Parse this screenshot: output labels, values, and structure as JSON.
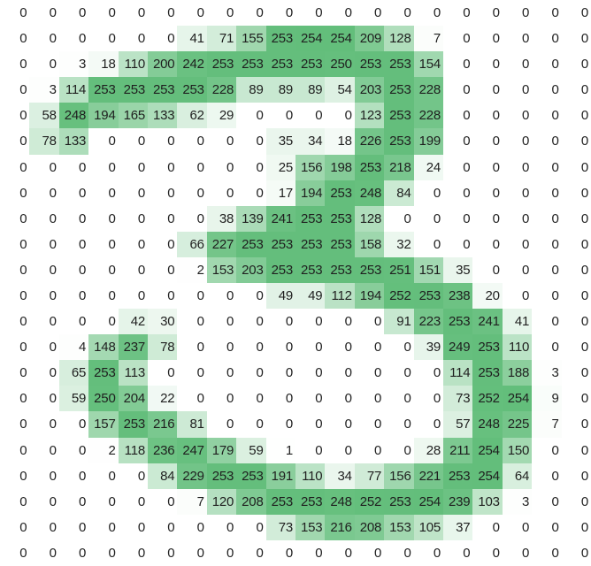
{
  "chart_data": {
    "type": "heatmap",
    "rows": 22,
    "cols": 20,
    "values": [
      [
        0,
        0,
        0,
        0,
        0,
        0,
        0,
        0,
        0,
        0,
        0,
        0,
        0,
        0,
        0,
        0,
        0,
        0,
        0,
        0
      ],
      [
        0,
        0,
        0,
        0,
        0,
        0,
        41,
        71,
        155,
        253,
        254,
        254,
        209,
        128,
        7,
        0,
        0,
        0,
        0,
        0
      ],
      [
        0,
        0,
        3,
        18,
        110,
        200,
        242,
        253,
        253,
        253,
        253,
        250,
        253,
        253,
        154,
        0,
        0,
        0,
        0,
        0
      ],
      [
        0,
        3,
        114,
        253,
        253,
        253,
        253,
        228,
        89,
        89,
        89,
        54,
        203,
        253,
        228,
        0,
        0,
        0,
        0,
        0
      ],
      [
        0,
        58,
        248,
        194,
        165,
        133,
        62,
        29,
        0,
        0,
        0,
        0,
        123,
        253,
        228,
        0,
        0,
        0,
        0,
        0
      ],
      [
        0,
        78,
        133,
        0,
        0,
        0,
        0,
        0,
        0,
        35,
        34,
        18,
        226,
        253,
        199,
        0,
        0,
        0,
        0,
        0
      ],
      [
        0,
        0,
        0,
        0,
        0,
        0,
        0,
        0,
        0,
        25,
        156,
        198,
        253,
        218,
        24,
        0,
        0,
        0,
        0,
        0
      ],
      [
        0,
        0,
        0,
        0,
        0,
        0,
        0,
        0,
        0,
        17,
        194,
        253,
        248,
        84,
        0,
        0,
        0,
        0,
        0,
        0
      ],
      [
        0,
        0,
        0,
        0,
        0,
        0,
        0,
        38,
        139,
        241,
        253,
        253,
        128,
        0,
        0,
        0,
        0,
        0,
        0,
        0
      ],
      [
        0,
        0,
        0,
        0,
        0,
        0,
        66,
        227,
        253,
        253,
        253,
        253,
        158,
        32,
        0,
        0,
        0,
        0,
        0,
        0
      ],
      [
        0,
        0,
        0,
        0,
        0,
        0,
        2,
        153,
        203,
        253,
        253,
        253,
        253,
        251,
        151,
        35,
        0,
        0,
        0,
        0
      ],
      [
        0,
        0,
        0,
        0,
        0,
        0,
        0,
        0,
        0,
        49,
        49,
        112,
        194,
        252,
        253,
        238,
        20,
        0,
        0,
        0
      ],
      [
        0,
        0,
        0,
        0,
        42,
        30,
        0,
        0,
        0,
        0,
        0,
        0,
        0,
        91,
        223,
        253,
        241,
        41,
        0,
        0
      ],
      [
        0,
        0,
        4,
        148,
        237,
        78,
        0,
        0,
        0,
        0,
        0,
        0,
        0,
        0,
        39,
        249,
        253,
        110,
        0,
        0
      ],
      [
        0,
        0,
        65,
        253,
        113,
        0,
        0,
        0,
        0,
        0,
        0,
        0,
        0,
        0,
        0,
        114,
        253,
        188,
        3,
        0
      ],
      [
        0,
        0,
        59,
        250,
        204,
        22,
        0,
        0,
        0,
        0,
        0,
        0,
        0,
        0,
        0,
        73,
        252,
        254,
        9,
        0
      ],
      [
        0,
        0,
        0,
        157,
        253,
        216,
        81,
        0,
        0,
        0,
        0,
        0,
        0,
        0,
        0,
        57,
        248,
        225,
        7,
        0
      ],
      [
        0,
        0,
        0,
        2,
        118,
        236,
        247,
        179,
        59,
        1,
        0,
        0,
        0,
        0,
        28,
        211,
        254,
        150,
        0,
        0
      ],
      [
        0,
        0,
        0,
        0,
        0,
        84,
        229,
        253,
        253,
        191,
        110,
        34,
        77,
        156,
        221,
        253,
        254,
        64,
        0,
        0
      ],
      [
        0,
        0,
        0,
        0,
        0,
        0,
        7,
        120,
        208,
        253,
        253,
        248,
        252,
        253,
        254,
        239,
        103,
        3,
        0,
        0
      ],
      [
        0,
        0,
        0,
        0,
        0,
        0,
        0,
        0,
        0,
        73,
        153,
        216,
        208,
        153,
        105,
        37,
        0,
        0,
        0,
        0
      ],
      [
        0,
        0,
        0,
        0,
        0,
        0,
        0,
        0,
        0,
        0,
        0,
        0,
        0,
        0,
        0,
        0,
        0,
        0,
        0,
        0
      ]
    ],
    "value_min": 0,
    "value_max": 254,
    "color_min": "#ffffff",
    "color_max": "#63be7b",
    "text_color": "#1f1f1f",
    "grid_lines": false,
    "cell_text_align": "right",
    "legend": "none",
    "title": ""
  }
}
